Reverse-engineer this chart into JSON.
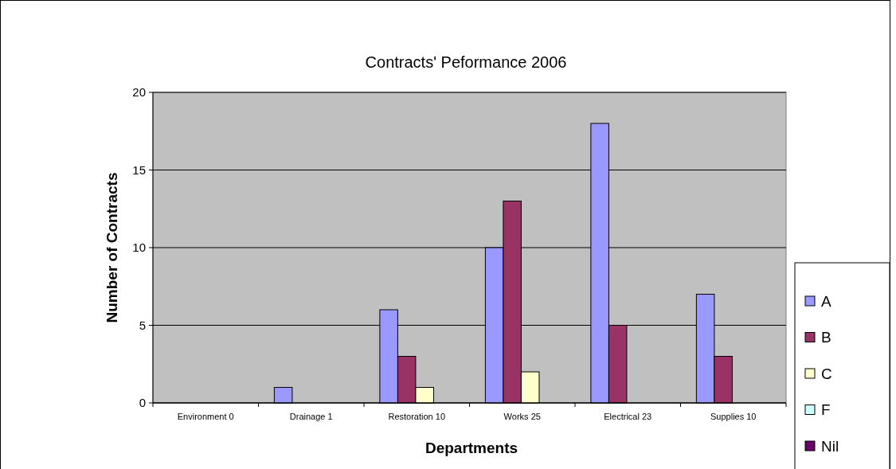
{
  "chart_data": {
    "type": "bar",
    "title": "Contracts' Peformance 2006",
    "xlabel": "Departments",
    "ylabel": "Number of Contracts",
    "categories": [
      "Environment 0",
      "Drainage 1",
      "Restoration 10",
      "Works 25",
      "Electrical 23",
      "Supplies 10"
    ],
    "series": [
      {
        "name": "A",
        "color": "#9999ff",
        "values": [
          0,
          1,
          6,
          10,
          18,
          7
        ]
      },
      {
        "name": "B",
        "color": "#993366",
        "values": [
          0,
          0,
          3,
          13,
          5,
          3
        ]
      },
      {
        "name": "C",
        "color": "#ffffcc",
        "values": [
          0,
          0,
          1,
          2,
          0,
          0
        ]
      },
      {
        "name": "F",
        "color": "#ccffff",
        "values": [
          0,
          0,
          0,
          0,
          0,
          0
        ]
      },
      {
        "name": "Nil",
        "color": "#660066",
        "values": [
          0,
          0,
          0,
          0,
          0,
          0
        ]
      }
    ],
    "ylim": [
      0,
      20
    ],
    "yticks": [
      0,
      5,
      10,
      15,
      20
    ],
    "grid": "y",
    "legend": "right"
  }
}
